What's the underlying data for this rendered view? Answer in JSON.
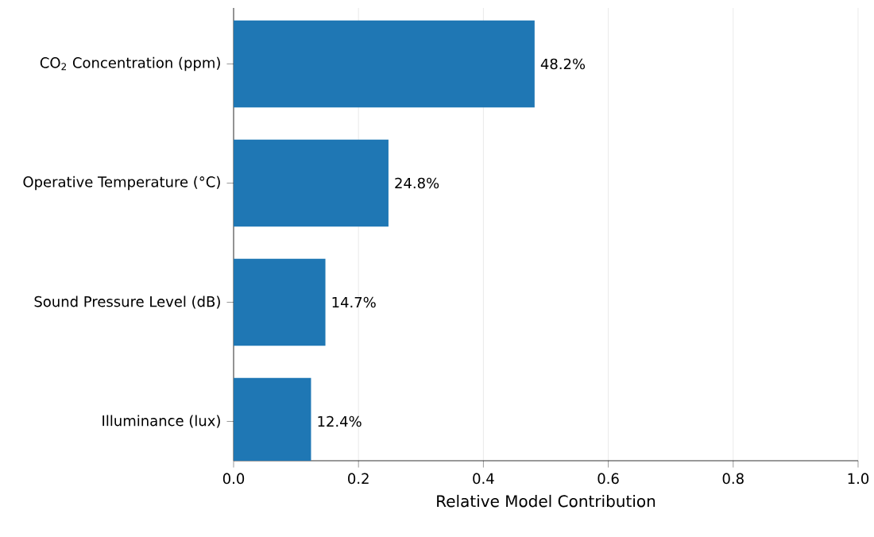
{
  "chart_data": {
    "type": "bar",
    "orientation": "horizontal",
    "xlabel": "Relative Model Contribution",
    "categories": [
      "CO$_{2}$ Concentration (ppm)",
      "Operative Temperature (°C)",
      "Sound Pressure Level (dB)",
      "Illuminance (lux)"
    ],
    "values": [
      0.482,
      0.248,
      0.147,
      0.124
    ],
    "value_labels": [
      "48.2%",
      "24.8%",
      "14.7%",
      "12.4%"
    ],
    "color": "#1f77b4",
    "xlim": [
      0,
      1
    ],
    "xticks": [
      {
        "value": 0,
        "label": "0.0"
      },
      0.2,
      0.4,
      0.6,
      0.8,
      {
        "value": 1,
        "label": "1.0"
      }
    ],
    "grid": "x"
  }
}
